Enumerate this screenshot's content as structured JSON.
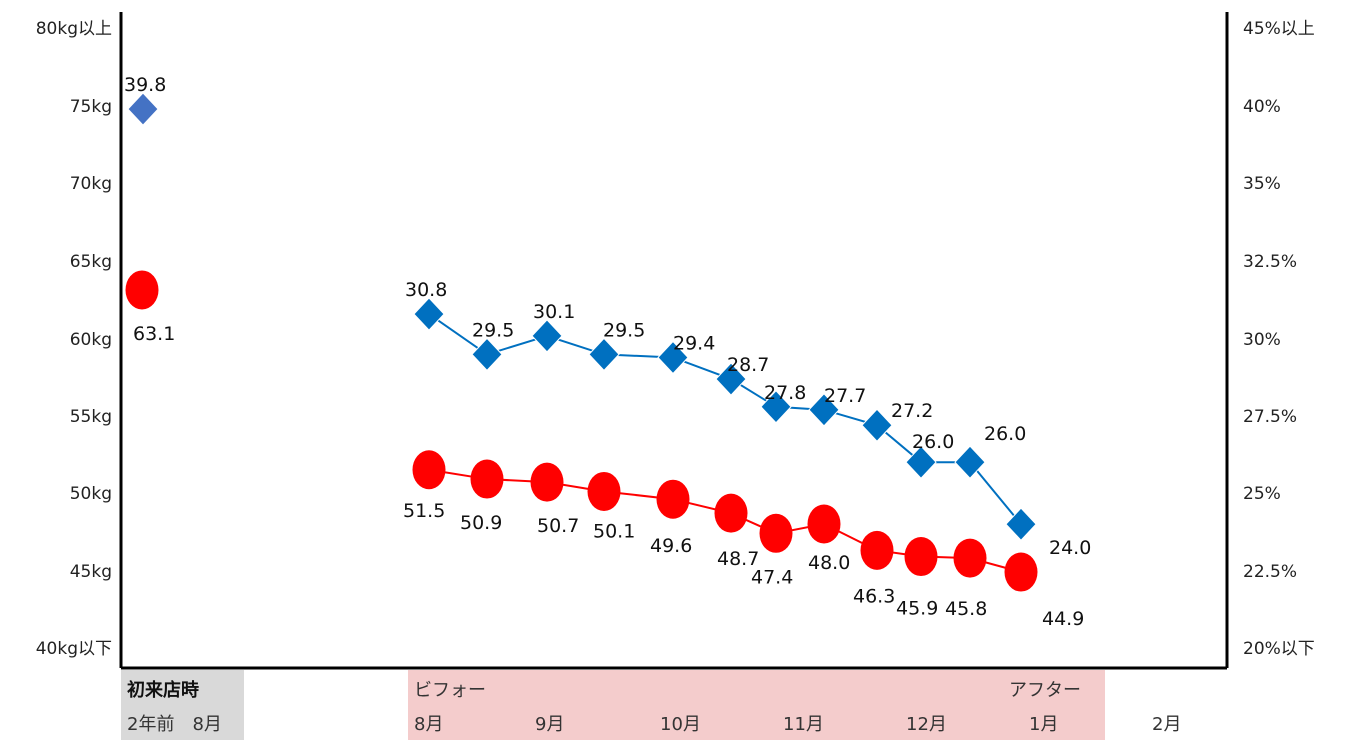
{
  "chart_data": {
    "type": "line",
    "left_axis": {
      "ticks": [
        "80kg以上",
        "75kg",
        "70kg",
        "65kg",
        "60kg",
        "55kg",
        "50kg",
        "45kg",
        "40kg以下"
      ],
      "ylim": [
        40,
        80
      ]
    },
    "right_axis": {
      "ticks": [
        "45%以上",
        "40%",
        "35%",
        "32.5%",
        "30%",
        "27.5%",
        "25%",
        "22.5%",
        "20%以下"
      ]
    },
    "grid": false,
    "series": [
      {
        "color": "#0070c0",
        "marker": "diamond",
        "initial": {
          "value": 39.8,
          "color": "#4472c4"
        },
        "values": [
          30.8,
          29.5,
          30.1,
          29.5,
          29.4,
          28.7,
          27.8,
          27.7,
          27.2,
          26.0,
          26.0,
          24.0
        ]
      },
      {
        "color": "#ff0000",
        "marker": "circle",
        "initial": {
          "value": 63.1,
          "color": "#ff0000"
        },
        "values": [
          51.5,
          50.9,
          50.7,
          50.1,
          49.6,
          48.7,
          47.4,
          48.0,
          46.3,
          45.9,
          45.8,
          44.9
        ]
      }
    ],
    "category_band": {
      "initial_label": "初来店時",
      "initial_month": "2年前　8月",
      "before_label": "ビフォー",
      "after_label": "アフター",
      "months": [
        "8月",
        "9月",
        "10月",
        "11月",
        "12月",
        "1月",
        "2月"
      ],
      "initial_fill": "#d9d9d9",
      "period_fill": "#f4cccc"
    }
  }
}
